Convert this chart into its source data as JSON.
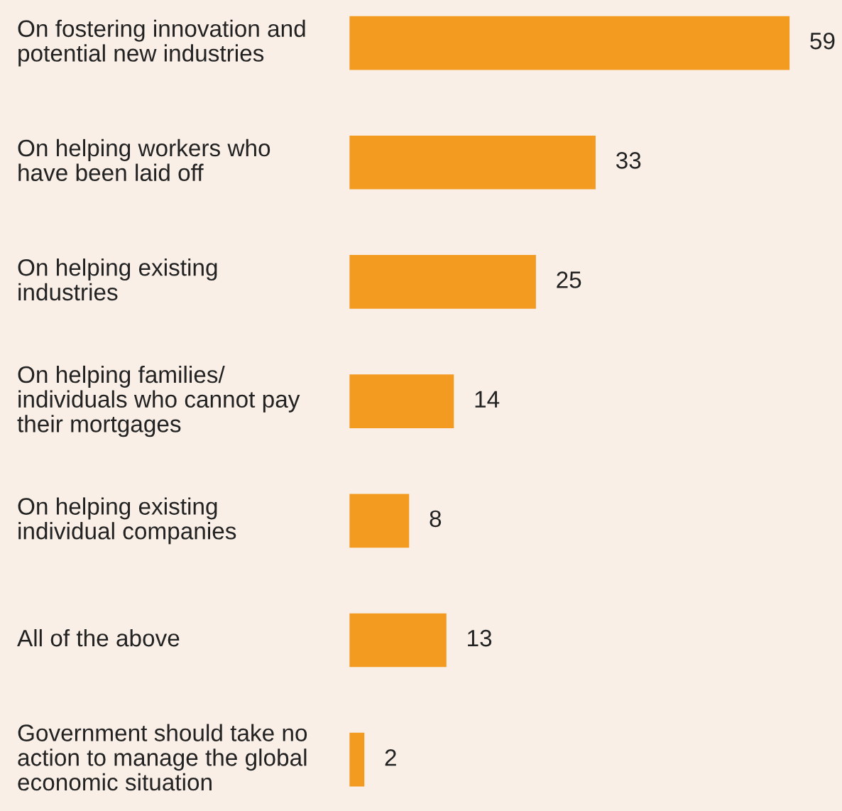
{
  "chart_data": {
    "type": "bar",
    "orientation": "horizontal",
    "categories": [
      "On fostering innovation and\npotential new industries",
      "On helping workers who\nhave been laid off",
      "On helping existing\nindustries",
      "On helping families/\nindividuals who cannot pay\ntheir mortgages",
      "On helping existing\nindividual companies",
      "All of the above",
      "Government should take no\naction to manage the global\neconomic situation"
    ],
    "values": [
      59,
      33,
      25,
      14,
      8,
      13,
      2
    ],
    "color": "#f39a21",
    "data_labels": true
  }
}
